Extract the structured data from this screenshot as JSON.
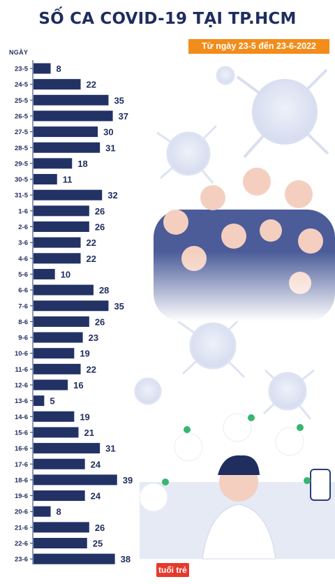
{
  "title": "SỐ CA COVID-19 TẠI TP.HCM",
  "subtitle": "Từ ngày 23-5 đến 23-6-2022",
  "brand": "tuổi trẻ",
  "colors": {
    "bar": "#223265",
    "title": "#1f2d5f",
    "badge": "#f28c1a",
    "illustration": "#c9d2ea"
  },
  "chart_data": {
    "type": "bar",
    "orientation": "horizontal",
    "title": "SỐ CA COVID-19 TẠI TP.HCM",
    "subtitle": "Từ ngày 23-5 đến 23-6-2022",
    "ylabel": "NGÀY",
    "xlabel": "",
    "xlim": [
      0,
      40
    ],
    "grid": false,
    "data_labels": true,
    "categories": [
      "23-5",
      "24-5",
      "25-5",
      "26-5",
      "27-5",
      "28-5",
      "29-5",
      "30-5",
      "31-5",
      "1-6",
      "2-6",
      "3-6",
      "4-6",
      "5-6",
      "6-6",
      "7-6",
      "8-6",
      "9-6",
      "10-6",
      "11-6",
      "12-6",
      "13-6",
      "14-6",
      "15-6",
      "16-6",
      "17-6",
      "18-6",
      "19-6",
      "20-6",
      "21-6",
      "22-6",
      "23-6"
    ],
    "values": [
      8,
      22,
      35,
      37,
      30,
      31,
      18,
      11,
      32,
      26,
      26,
      22,
      22,
      10,
      28,
      35,
      26,
      23,
      19,
      22,
      16,
      5,
      19,
      21,
      31,
      24,
      39,
      24,
      8,
      26,
      25,
      38
    ]
  }
}
